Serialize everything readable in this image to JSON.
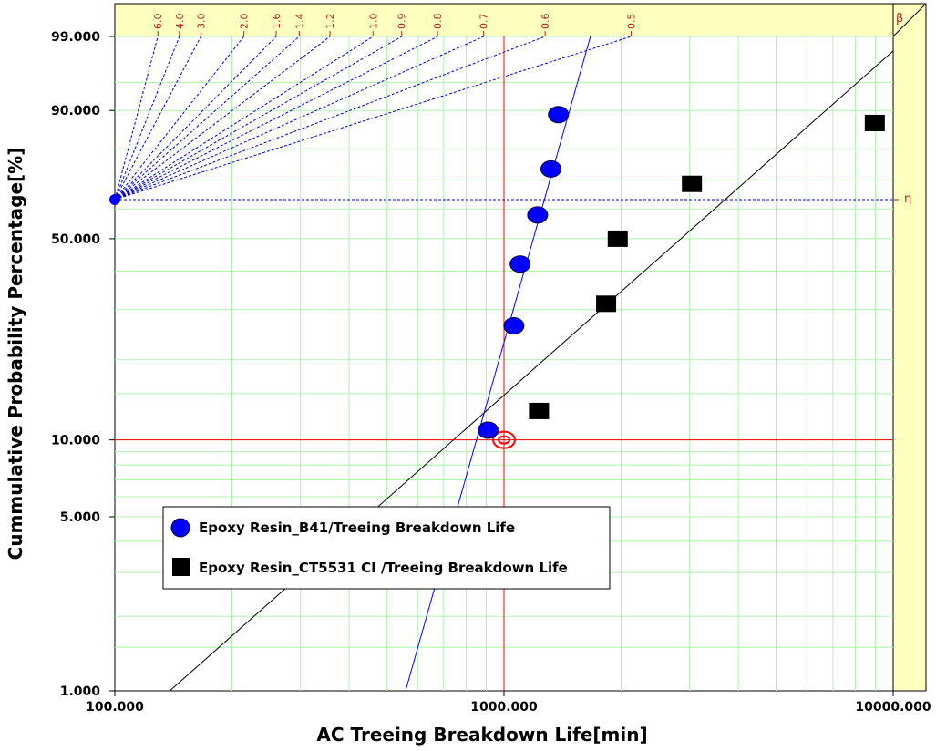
{
  "chart_data": {
    "type": "scatter",
    "title": "",
    "xlabel": "AC Treeing Breakdown Life[min]",
    "ylabel": "Cummulative Probability Percentage[%]",
    "x_scale": "log",
    "y_scale": "weibull",
    "xlim": [
      100,
      10000
    ],
    "ylim": [
      1,
      99
    ],
    "x_tick_labels": [
      "100.000",
      "1000.000",
      "10000.000"
    ],
    "x_ticks": [
      100,
      1000,
      10000
    ],
    "y_tick_labels": [
      "1.000",
      "5.000",
      "10.000",
      "50.000",
      "90.000",
      "99.000"
    ],
    "y_ticks": [
      1,
      5,
      10,
      50,
      90,
      99
    ],
    "grid": true,
    "beta_label": "β",
    "eta_label": "η",
    "beta_scale_labels": [
      "6.0",
      "4.0",
      "3.0",
      "2.0",
      "1.6",
      "1.4",
      "1.2",
      "1.0",
      "0.9",
      "0.8",
      "0.7",
      "0.6",
      "0.5"
    ],
    "beta_scale_values": [
      6.0,
      4.0,
      3.0,
      2.0,
      1.6,
      1.4,
      1.2,
      1.0,
      0.9,
      0.8,
      0.7,
      0.6,
      0.5
    ],
    "reference_point": {
      "x": 1000,
      "y": 10
    },
    "legend_position": "lower-left",
    "colors": {
      "series1": "#0000ff",
      "series2": "#000000",
      "grid": "#b0f0b0",
      "reference": "#ff0000",
      "beta_band": "#ffffc0",
      "beta_text": "#b22222",
      "beta_lines": "#0000cc"
    },
    "series": [
      {
        "name": "Epoxy Resin_B41/Treeing Breakdown Life",
        "marker": "circle",
        "points": [
          [
            910,
            10.9
          ],
          [
            1060,
            26.4
          ],
          [
            1100,
            42.1
          ],
          [
            1220,
            57.9
          ],
          [
            1320,
            73.6
          ],
          [
            1380,
            89.1
          ]
        ],
        "fit": {
          "beta": 5.6,
          "eta": 1270
        }
      },
      {
        "name": "Epoxy Resin_CT5531 CI /Treeing Breakdown Life",
        "marker": "square",
        "points": [
          [
            1230,
            12.9
          ],
          [
            1830,
            31.4
          ],
          [
            1960,
            50.0
          ],
          [
            3040,
            68.6
          ],
          [
            8970,
            87.1
          ]
        ],
        "fit": {
          "beta": 1.4,
          "eta": 3700
        }
      }
    ]
  }
}
